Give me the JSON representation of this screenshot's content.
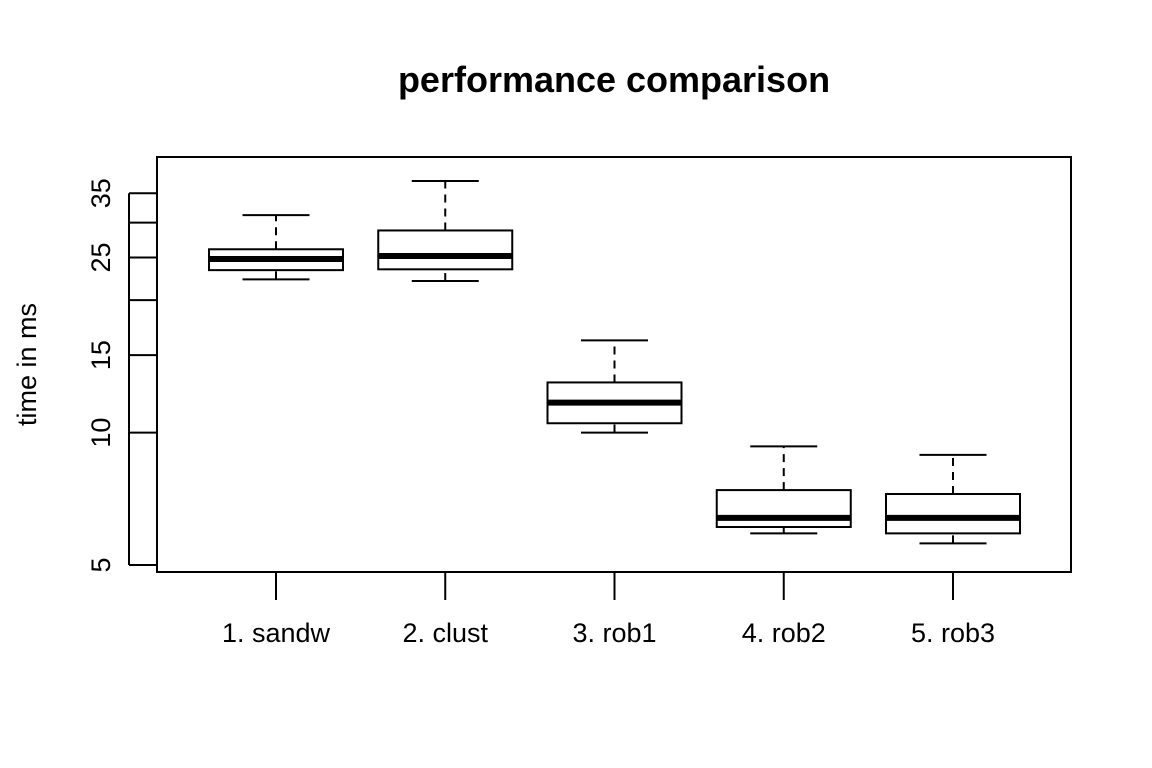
{
  "chart_data": {
    "type": "boxplot",
    "title": "performance comparison",
    "xlabel": "",
    "ylabel": "time in ms",
    "y_scale": "log",
    "ylim": [
      4.85,
      40.5
    ],
    "y_ticks": [
      5,
      10,
      15,
      20,
      25,
      30,
      35
    ],
    "y_tick_labels": [
      "5",
      "10",
      "15",
      "",
      "25",
      "",
      "35"
    ],
    "grid": false,
    "legend": "none",
    "box_color": "#000000",
    "categories": [
      "1. sandw",
      "2. clust",
      "3. rob1",
      "4. rob2",
      "5. rob3"
    ],
    "boxes": [
      {
        "whisker_low": 22.3,
        "q1": 23.4,
        "median": 24.8,
        "q3": 26.1,
        "whisker_high": 31.2
      },
      {
        "whisker_low": 22.1,
        "q1": 23.5,
        "median": 25.2,
        "q3": 28.8,
        "whisker_high": 37.3
      },
      {
        "whisker_low": 10.0,
        "q1": 10.5,
        "median": 11.7,
        "q3": 13.0,
        "whisker_high": 16.2
      },
      {
        "whisker_low": 5.9,
        "q1": 6.1,
        "median": 6.4,
        "q3": 7.4,
        "whisker_high": 9.3
      },
      {
        "whisker_low": 5.6,
        "q1": 5.9,
        "median": 6.4,
        "q3": 7.25,
        "whisker_high": 8.9
      }
    ]
  }
}
